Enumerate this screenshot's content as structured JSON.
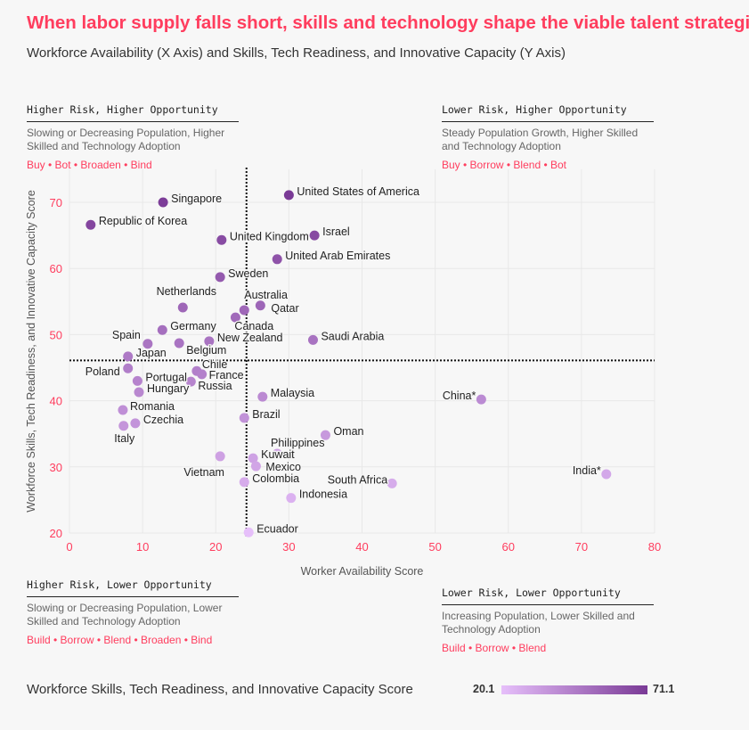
{
  "title": "When labor supply falls short, skills and technology shape the viable talent strategies.",
  "subtitle": "Workforce Availability (X Axis) and Skills, Tech Readiness, and Innovative Capacity (Y Axis)",
  "quadrants": {
    "top_left": {
      "heading": "Higher Risk, Higher Opportunity",
      "description": "Slowing or Decreasing Population, Higher Skilled and Technology Adoption",
      "strategies": "Buy • Bot • Broaden • Bind"
    },
    "top_right": {
      "heading": "Lower Risk, Higher Opportunity",
      "description": "Steady Population Growth, Higher Skilled and Technology Adoption",
      "strategies": "Buy • Borrow • Blend • Bot"
    },
    "bottom_left": {
      "heading": "Higher Risk, Lower Opportunity",
      "description": "Slowing or Decreasing Population, Lower Skilled and Technology Adoption",
      "strategies": "Build • Borrow • Blend • Broaden • Bind"
    },
    "bottom_right": {
      "heading": "Lower Risk, Lower Opportunity",
      "description": "Increasing Population, Lower Skilled and Technology Adoption",
      "strategies": "Build • Borrow • Blend"
    }
  },
  "legend": {
    "title": "Workforce Skills, Tech Readiness, and Innovative Capacity Score",
    "min": "20.1",
    "max": "71.1",
    "color_min": "#e6bffa",
    "color_max": "#7a3a96"
  },
  "colors": {
    "accent": "#ff3d5e",
    "tick": "#ff3d5e",
    "grid": "#e8e8e8",
    "divider": "#111111"
  },
  "chart_data": {
    "type": "scatter",
    "xlabel": "Worker Availability Score",
    "ylabel": "Workforce Skills, Tech Readiness, and Innovative Capacity Score",
    "xlim": [
      0,
      80
    ],
    "ylim": [
      20,
      75
    ],
    "xticks": [
      "0",
      "10",
      "20",
      "30",
      "40",
      "50",
      "60",
      "70",
      "80"
    ],
    "yticks": [
      "20",
      "30",
      "40",
      "50",
      "60",
      "70"
    ],
    "grid": true,
    "divider_x": 24.2,
    "divider_y": 46.1,
    "points": [
      {
        "name": "United States of America",
        "x": 30.0,
        "y": 71.1
      },
      {
        "name": "Singapore",
        "x": 12.8,
        "y": 70.0
      },
      {
        "name": "Republic of Korea",
        "x": 2.9,
        "y": 66.6
      },
      {
        "name": "United Kingdom",
        "x": 20.8,
        "y": 64.3
      },
      {
        "name": "Israel",
        "x": 33.5,
        "y": 65.0
      },
      {
        "name": "United Arab Emirates",
        "x": 28.4,
        "y": 61.4
      },
      {
        "name": "Sweden",
        "x": 20.6,
        "y": 58.7
      },
      {
        "name": "Netherlands",
        "x": 15.5,
        "y": 54.1
      },
      {
        "name": "Australia",
        "x": 23.9,
        "y": 53.7
      },
      {
        "name": "Qatar",
        "x": 26.1,
        "y": 54.4
      },
      {
        "name": "Canada",
        "x": 22.7,
        "y": 52.6
      },
      {
        "name": "Germany",
        "x": 12.7,
        "y": 50.7
      },
      {
        "name": "Spain",
        "x": 10.7,
        "y": 48.6
      },
      {
        "name": "Belgium",
        "x": 15.0,
        "y": 48.7
      },
      {
        "name": "New Zealand",
        "x": 19.1,
        "y": 49.0
      },
      {
        "name": "Saudi Arabia",
        "x": 33.3,
        "y": 49.2
      },
      {
        "name": "Japan",
        "x": 8.0,
        "y": 46.7
      },
      {
        "name": "Poland",
        "x": 8.0,
        "y": 44.9
      },
      {
        "name": "Portugal",
        "x": 9.3,
        "y": 43.0
      },
      {
        "name": "Hungary",
        "x": 9.5,
        "y": 41.3
      },
      {
        "name": "Chile",
        "x": 17.4,
        "y": 44.5
      },
      {
        "name": "France",
        "x": 18.1,
        "y": 44.0
      },
      {
        "name": "Russia",
        "x": 16.6,
        "y": 42.9
      },
      {
        "name": "Malaysia",
        "x": 26.4,
        "y": 40.6
      },
      {
        "name": "Romania",
        "x": 7.3,
        "y": 38.6
      },
      {
        "name": "Czechia",
        "x": 9.0,
        "y": 36.6
      },
      {
        "name": "Italy",
        "x": 7.4,
        "y": 36.2
      },
      {
        "name": "Brazil",
        "x": 23.9,
        "y": 37.4
      },
      {
        "name": "Oman",
        "x": 35.0,
        "y": 34.8
      },
      {
        "name": "Philippines",
        "x": 28.4,
        "y": 32.0
      },
      {
        "name": "Kuwait",
        "x": 25.1,
        "y": 31.3
      },
      {
        "name": "Vietnam",
        "x": 20.6,
        "y": 31.6
      },
      {
        "name": "Mexico",
        "x": 25.5,
        "y": 30.1
      },
      {
        "name": "Colombia",
        "x": 23.9,
        "y": 27.7
      },
      {
        "name": "South Africa",
        "x": 44.1,
        "y": 27.5
      },
      {
        "name": "Indonesia",
        "x": 30.3,
        "y": 25.3
      },
      {
        "name": "Ecuador",
        "x": 24.5,
        "y": 20.1
      },
      {
        "name": "China*",
        "x": 56.3,
        "y": 40.2
      },
      {
        "name": "India*",
        "x": 73.4,
        "y": 28.9
      }
    ]
  }
}
